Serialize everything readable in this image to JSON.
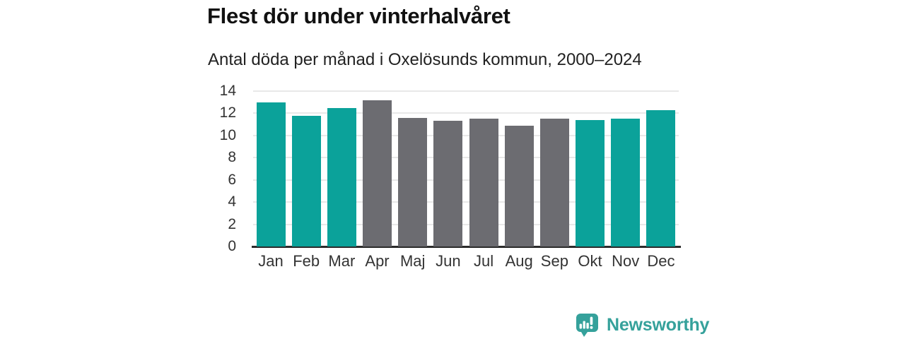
{
  "header": {
    "title": "Flest dör under vinterhalvåret",
    "subtitle": "Antal döda per månad i Oxelösunds kommun, 2000–2024"
  },
  "chart_data": {
    "type": "bar",
    "title": "Flest dör under vinterhalvåret",
    "subtitle": "Antal döda per månad i Oxelösunds kommun, 2000–2024",
    "categories": [
      "Jan",
      "Feb",
      "Mar",
      "Apr",
      "Maj",
      "Jun",
      "Jul",
      "Aug",
      "Sep",
      "Okt",
      "Nov",
      "Dec"
    ],
    "values": [
      13.0,
      11.8,
      12.5,
      13.2,
      11.6,
      11.3,
      11.5,
      10.9,
      11.5,
      11.4,
      11.5,
      12.3
    ],
    "winter_mask": [
      true,
      true,
      true,
      false,
      false,
      false,
      false,
      false,
      false,
      true,
      true,
      true
    ],
    "colors": {
      "winter": "#0ba29a",
      "summer": "#6c6c71",
      "gridline": "#e8e8e8",
      "axis": "#2b2b2b",
      "tick_text": "#333333"
    },
    "xlabel": "",
    "ylabel": "",
    "ylim": [
      0,
      14
    ],
    "y_ticks": [
      0,
      2,
      4,
      6,
      8,
      10,
      12,
      14
    ],
    "grid": "horizontal",
    "legend": "none"
  },
  "footer": {
    "brand": "Newsworthy",
    "brand_color": "#35a19b",
    "logo_icon": "newsworthy-bubble-barchart-icon"
  }
}
